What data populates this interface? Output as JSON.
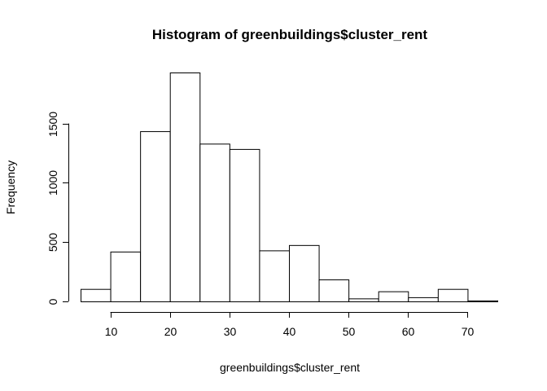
{
  "chart_data": {
    "type": "bar",
    "title": "Histogram of greenbuildings$cluster_rent",
    "xlabel": "greenbuildings$cluster_rent",
    "ylabel": "Frequency",
    "bin_edges": [
      5,
      10,
      15,
      20,
      25,
      30,
      35,
      40,
      45,
      50,
      55,
      60,
      65,
      70,
      75
    ],
    "values": [
      105,
      420,
      1435,
      1930,
      1330,
      1285,
      430,
      475,
      185,
      25,
      85,
      35,
      105,
      8
    ],
    "xlim": [
      5,
      75
    ],
    "ylim": [
      0,
      1930
    ],
    "x_ticks": [
      10,
      20,
      30,
      40,
      50,
      60,
      70
    ],
    "y_ticks": [
      0,
      500,
      1000,
      1500
    ],
    "grid": false,
    "legend": "none"
  },
  "colors": {
    "bar_fill": "#ffffff",
    "bar_stroke": "#000000",
    "background": "#ffffff"
  }
}
